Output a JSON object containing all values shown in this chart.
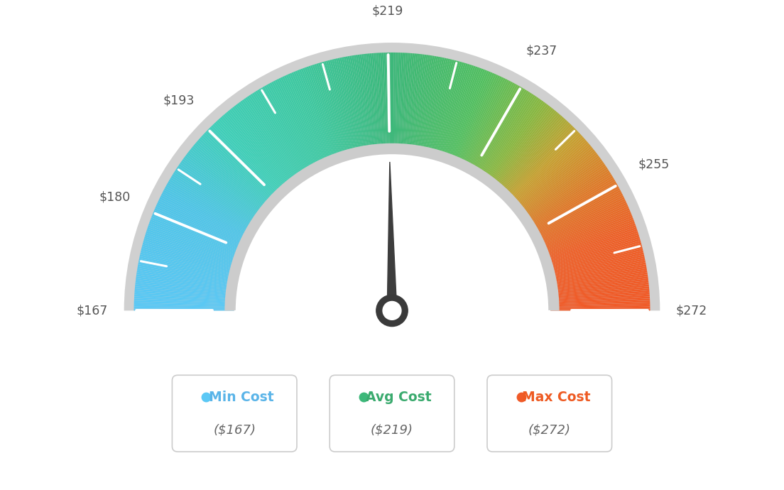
{
  "min_val": 167,
  "max_val": 272,
  "avg_val": 219,
  "tick_labels": [
    "$167",
    "$180",
    "$193",
    "$219",
    "$237",
    "$255",
    "$272"
  ],
  "tick_values": [
    167,
    180,
    193,
    219,
    237,
    255,
    272
  ],
  "color_min": "#5bc8f5",
  "color_avg": "#3db87a",
  "color_max": "#f05a28",
  "color_text_min": "#5ab4e8",
  "color_text_avg": "#3aaa6e",
  "color_text_max": "#ee5a22",
  "color_value_text": "#666666",
  "background_color": "#ffffff",
  "needle_color": "#3d3d3d",
  "legend_min_label": "Min Cost",
  "legend_avg_label": "Avg Cost",
  "legend_max_label": "Max Cost",
  "legend_min_value": "($167)",
  "legend_avg_value": "($219)",
  "legend_max_value": "($272)",
  "gauge_colors": [
    [
      0.0,
      "#5bc8f5"
    ],
    [
      0.15,
      "#4ec5e8"
    ],
    [
      0.26,
      "#3ecfb8"
    ],
    [
      0.38,
      "#3dc9a0"
    ],
    [
      0.5,
      "#3db87a"
    ],
    [
      0.62,
      "#52c060"
    ],
    [
      0.7,
      "#8ab840"
    ],
    [
      0.76,
      "#c8a030"
    ],
    [
      0.83,
      "#e07828"
    ],
    [
      0.9,
      "#ee6028"
    ],
    [
      1.0,
      "#f05a28"
    ]
  ]
}
